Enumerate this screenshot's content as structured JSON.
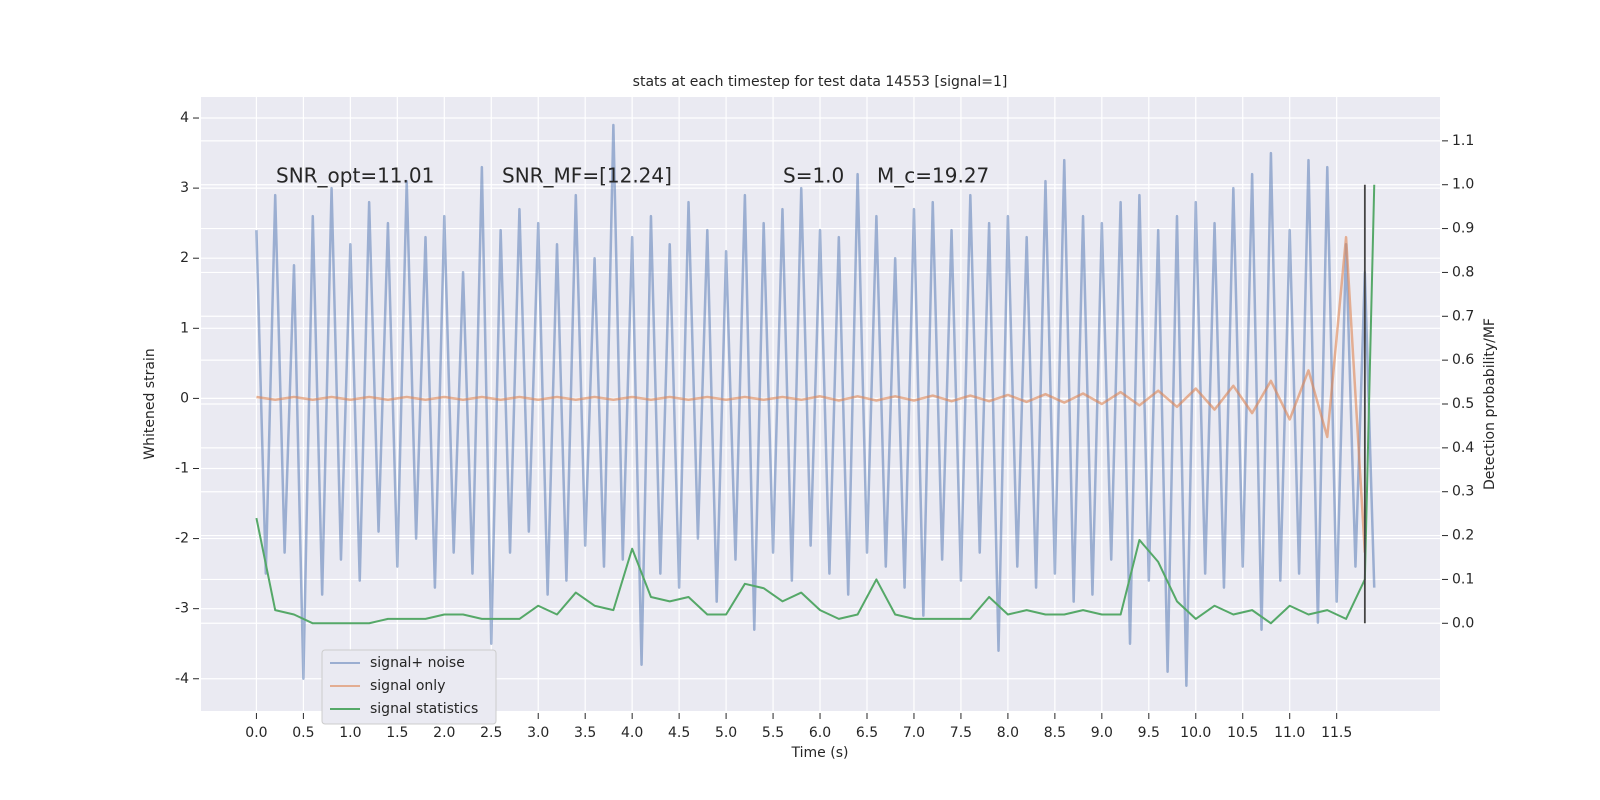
{
  "chart_data": {
    "type": "line",
    "title": "stats at each timestep for test data 14553 [signal=1]",
    "xlabel": "Time (s)",
    "ylabel": "Whitened strain",
    "y2label": "Detection probability/MF",
    "annotations": [
      "SNR_opt=11.01",
      "SNR_MF=[12.24]",
      "S=1.0",
      "M_c=19.27"
    ],
    "xlim": [
      -0.59,
      12.6
    ],
    "ylim": [
      -4.46,
      4.3
    ],
    "y2lim": [
      -0.2,
      1.2
    ],
    "xticks": [
      {
        "value": 0,
        "label": "0.0"
      },
      {
        "value": 0.5,
        "label": "0.5"
      },
      {
        "value": 1,
        "label": "1.0"
      },
      {
        "value": 1.5,
        "label": "1.5"
      },
      {
        "value": 2,
        "label": "2.0"
      },
      {
        "value": 2.5,
        "label": "2.5"
      },
      {
        "value": 3,
        "label": "3.0"
      },
      {
        "value": 3.5,
        "label": "3.5"
      },
      {
        "value": 4,
        "label": "4.0"
      },
      {
        "value": 4.5,
        "label": "4.5"
      },
      {
        "value": 5,
        "label": "5.0"
      },
      {
        "value": 5.5,
        "label": "5.5"
      },
      {
        "value": 6,
        "label": "6.0"
      },
      {
        "value": 6.5,
        "label": "6.5"
      },
      {
        "value": 7,
        "label": "7.0"
      },
      {
        "value": 7.5,
        "label": "7.5"
      },
      {
        "value": 8,
        "label": "8.0"
      },
      {
        "value": 8.5,
        "label": "8.5"
      },
      {
        "value": 9,
        "label": "9.0"
      },
      {
        "value": 9.5,
        "label": "9.5"
      },
      {
        "value": 10,
        "label": "10.0"
      },
      {
        "value": 10.5,
        "label": "10.5"
      },
      {
        "value": 11,
        "label": "11.0"
      },
      {
        "value": 11.5,
        "label": "11.5"
      }
    ],
    "yticks": [
      -4,
      -3,
      -2,
      -1,
      0,
      1,
      2,
      3,
      4
    ],
    "y2ticks": [
      {
        "value": 0,
        "label": "0.0"
      },
      {
        "value": 0.1,
        "label": "0.1"
      },
      {
        "value": 0.2,
        "label": "0.2"
      },
      {
        "value": 0.3,
        "label": "0.3"
      },
      {
        "value": 0.4,
        "label": "0.4"
      },
      {
        "value": 0.5,
        "label": "0.5"
      },
      {
        "value": 0.6,
        "label": "0.6"
      },
      {
        "value": 0.7,
        "label": "0.7"
      },
      {
        "value": 0.8,
        "label": "0.8"
      },
      {
        "value": 0.9,
        "label": "0.9"
      },
      {
        "value": 1,
        "label": "1.0"
      },
      {
        "value": 1.1,
        "label": "1.1"
      }
    ],
    "grid": true,
    "legend": "lower left",
    "series": [
      {
        "name": "signal+ noise",
        "color": "#4c72b0",
        "alpha": 0.5,
        "x": [
          0,
          0.1,
          0.2,
          0.3,
          0.4,
          0.5,
          0.6,
          0.7,
          0.8,
          0.9,
          1,
          1.1,
          1.2,
          1.3,
          1.4,
          1.5,
          1.6,
          1.7,
          1.8,
          1.9,
          2,
          2.1,
          2.2,
          2.3,
          2.4,
          2.5,
          2.6,
          2.7,
          2.8,
          2.9,
          3,
          3.1,
          3.2,
          3.3,
          3.4,
          3.5,
          3.6,
          3.7,
          3.8,
          3.9,
          4,
          4.1,
          4.2,
          4.3,
          4.4,
          4.5,
          4.6,
          4.7,
          4.8,
          4.9,
          5,
          5.1,
          5.2,
          5.3,
          5.4,
          5.5,
          5.6,
          5.7,
          5.8,
          5.9,
          6,
          6.1,
          6.2,
          6.3,
          6.4,
          6.5,
          6.6,
          6.7,
          6.8,
          6.9,
          7,
          7.1,
          7.2,
          7.3,
          7.4,
          7.5,
          7.6,
          7.7,
          7.8,
          7.9,
          8,
          8.1,
          8.2,
          8.3,
          8.4,
          8.5,
          8.6,
          8.7,
          8.8,
          8.9,
          9,
          9.1,
          9.2,
          9.3,
          9.4,
          9.5,
          9.6,
          9.7,
          9.8,
          9.9,
          10,
          10.1,
          10.2,
          10.3,
          10.4,
          10.5,
          10.6,
          10.7,
          10.8,
          10.9,
          11,
          11.1,
          11.2,
          11.3,
          11.4,
          11.5,
          11.6,
          11.7,
          11.8,
          11.9
        ],
        "values": [
          2.4,
          -2.5,
          2.9,
          -2.2,
          1.9,
          -4.0,
          2.6,
          -2.8,
          3.0,
          -2.3,
          2.2,
          -2.6,
          2.8,
          -1.9,
          2.5,
          -2.4,
          3.1,
          -2.0,
          2.3,
          -2.7,
          2.6,
          -2.2,
          1.8,
          -2.5,
          3.3,
          -3.5,
          2.4,
          -2.2,
          2.7,
          -1.9,
          2.5,
          -2.8,
          2.2,
          -2.6,
          2.9,
          -2.1,
          2.0,
          -2.4,
          3.9,
          -2.3,
          2.3,
          -3.8,
          2.6,
          -2.5,
          2.2,
          -2.7,
          2.8,
          -2.0,
          2.4,
          -2.9,
          2.1,
          -2.3,
          2.9,
          -3.3,
          2.5,
          -2.2,
          2.7,
          -2.6,
          3.0,
          -2.1,
          2.4,
          -2.5,
          2.3,
          -2.8,
          3.2,
          -2.2,
          2.6,
          -2.4,
          2.0,
          -2.7,
          2.7,
          -3.1,
          2.8,
          -2.3,
          2.4,
          -2.6,
          2.9,
          -2.2,
          2.5,
          -3.6,
          2.6,
          -2.4,
          2.3,
          -2.7,
          3.1,
          -2.5,
          3.4,
          -2.9,
          2.6,
          -2.8,
          2.5,
          -2.3,
          2.8,
          -3.5,
          2.9,
          -2.6,
          2.4,
          -3.9,
          2.6,
          -4.1,
          2.8,
          -2.5,
          2.5,
          -2.7,
          3.0,
          -2.4,
          3.2,
          -3.3,
          3.5,
          -2.6,
          2.4,
          -2.5,
          3.4,
          -3.2,
          3.3,
          -2.9,
          2.2,
          -2.4,
          1.8,
          -2.7
        ]
      },
      {
        "name": "signal only",
        "color": "#dd8452",
        "alpha": 0.6,
        "x": [
          0,
          0.2,
          0.4,
          0.6,
          0.8,
          1,
          1.2,
          1.4,
          1.6,
          1.8,
          2,
          2.2,
          2.4,
          2.6,
          2.8,
          3,
          3.2,
          3.4,
          3.6,
          3.8,
          4,
          4.2,
          4.4,
          4.6,
          4.8,
          5,
          5.2,
          5.4,
          5.6,
          5.8,
          6,
          6.2,
          6.4,
          6.6,
          6.8,
          7,
          7.2,
          7.4,
          7.6,
          7.8,
          8,
          8.2,
          8.4,
          8.6,
          8.8,
          9,
          9.2,
          9.4,
          9.6,
          9.8,
          10,
          10.2,
          10.4,
          10.6,
          10.8,
          11,
          11.2,
          11.4,
          11.6,
          11.8
        ],
        "values": [
          0.02,
          -0.02,
          0.02,
          -0.02,
          0.02,
          -0.02,
          0.02,
          -0.02,
          0.02,
          -0.02,
          0.02,
          -0.02,
          0.02,
          -0.02,
          0.02,
          -0.02,
          0.02,
          -0.02,
          0.02,
          -0.02,
          0.02,
          -0.02,
          0.02,
          -0.02,
          0.02,
          -0.02,
          0.02,
          -0.02,
          0.02,
          -0.02,
          0.03,
          -0.03,
          0.03,
          -0.03,
          0.03,
          -0.03,
          0.04,
          -0.04,
          0.04,
          -0.04,
          0.05,
          -0.05,
          0.06,
          -0.06,
          0.07,
          -0.08,
          0.09,
          -0.1,
          0.11,
          -0.12,
          0.14,
          -0.16,
          0.18,
          -0.21,
          0.25,
          -0.3,
          0.4,
          -0.55,
          2.3,
          -2.2
        ]
      },
      {
        "name": "signal statistics",
        "color": "#55a868",
        "alpha": 1,
        "axis": "y2",
        "x": [
          0,
          0.2,
          0.4,
          0.6,
          0.8,
          1,
          1.2,
          1.4,
          1.6,
          1.8,
          2,
          2.2,
          2.4,
          2.6,
          2.8,
          3,
          3.2,
          3.4,
          3.6,
          3.8,
          4,
          4.2,
          4.4,
          4.6,
          4.8,
          5,
          5.2,
          5.4,
          5.6,
          5.8,
          6,
          6.2,
          6.4,
          6.6,
          6.8,
          7,
          7.2,
          7.4,
          7.6,
          7.8,
          8,
          8.2,
          8.4,
          8.6,
          8.8,
          9,
          9.2,
          9.4,
          9.6,
          9.8,
          10,
          10.2,
          10.4,
          10.6,
          10.8,
          11,
          11.2,
          11.4,
          11.6,
          11.8,
          11.9
        ],
        "values": [
          0.24,
          0.03,
          0.02,
          0.0,
          0.0,
          0.0,
          0.0,
          0.01,
          0.01,
          0.01,
          0.02,
          0.02,
          0.01,
          0.01,
          0.01,
          0.04,
          0.02,
          0.07,
          0.04,
          0.03,
          0.17,
          0.06,
          0.05,
          0.06,
          0.02,
          0.02,
          0.09,
          0.08,
          0.05,
          0.07,
          0.03,
          0.01,
          0.02,
          0.1,
          0.02,
          0.01,
          0.01,
          0.01,
          0.01,
          0.06,
          0.02,
          0.03,
          0.02,
          0.02,
          0.03,
          0.02,
          0.02,
          0.19,
          0.14,
          0.05,
          0.01,
          0.04,
          0.02,
          0.03,
          0.0,
          0.04,
          0.02,
          0.03,
          0.01,
          0.1,
          1.0
        ]
      }
    ],
    "vline": {
      "x": 11.8,
      "ymin": 0,
      "ymax": 1.0,
      "color": "#444444"
    }
  }
}
